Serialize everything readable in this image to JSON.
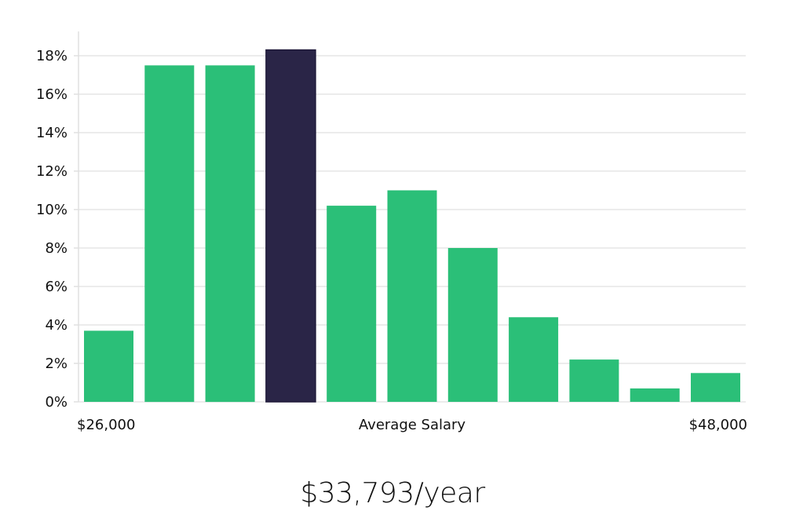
{
  "chart_data": {
    "type": "bar",
    "values": [
      3.7,
      17.5,
      17.5,
      18.3,
      10.2,
      11.0,
      8.0,
      4.4,
      2.2,
      0.7,
      1.5
    ],
    "highlight_index": 3,
    "ylim": [
      0,
      19
    ],
    "yticks": [
      0,
      2,
      4,
      6,
      8,
      10,
      12,
      14,
      16,
      18
    ],
    "ytick_suffix": "%",
    "grid": true,
    "x_labels": {
      "min": "$26,000",
      "center": "Average Salary",
      "max": "$48,000"
    },
    "colors": {
      "bar": "#2bbf78",
      "highlight": "#2a2547",
      "grid": "#e6e6e6"
    }
  },
  "footer": {
    "salary": "$33,793/year"
  }
}
